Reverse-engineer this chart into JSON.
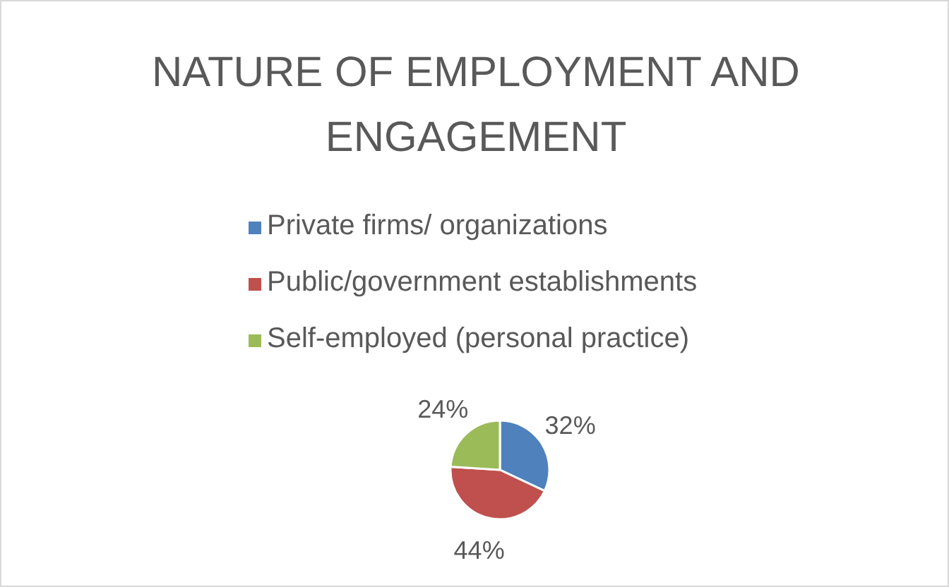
{
  "chart_data": {
    "type": "pie",
    "title": "NATURE OF EMPLOYMENT AND ENGAGEMENT",
    "categories": [
      "Private firms/ organizations",
      "Public/government establishments",
      "Self-employed (personal practice)"
    ],
    "values": [
      32,
      44,
      24
    ],
    "colors": [
      "#4f81bd",
      "#c0504d",
      "#9bbb59"
    ],
    "value_labels": [
      "32%",
      "44%",
      "24%"
    ],
    "legend": "top"
  }
}
